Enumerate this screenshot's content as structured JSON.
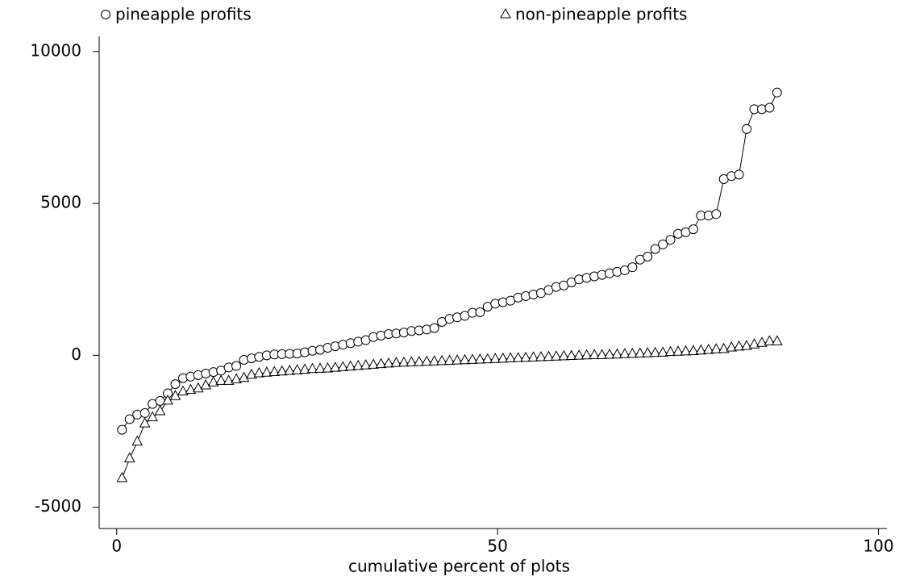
{
  "chart_data": {
    "type": "line",
    "x_label": "cumulative percent of plots",
    "x": [
      0.7,
      1.7,
      2.7,
      3.7,
      4.7,
      5.7,
      6.7,
      7.7,
      8.7,
      9.7,
      10.7,
      11.7,
      12.7,
      13.7,
      14.7,
      15.7,
      16.7,
      17.7,
      18.7,
      19.7,
      20.7,
      21.7,
      22.7,
      23.7,
      24.7,
      25.7,
      26.7,
      27.7,
      28.7,
      29.7,
      30.7,
      31.7,
      32.7,
      33.7,
      34.7,
      35.7,
      36.7,
      37.7,
      38.7,
      39.7,
      40.7,
      41.7,
      42.7,
      43.7,
      44.7,
      45.7,
      46.7,
      47.7,
      48.7,
      49.7,
      50.7,
      51.7,
      52.7,
      53.7,
      54.7,
      55.7,
      56.7,
      57.7,
      58.7,
      59.7,
      60.7,
      61.7,
      62.7,
      63.7,
      64.7,
      65.7,
      66.7,
      67.7,
      68.7,
      69.7,
      70.7,
      71.7,
      72.7,
      73.7,
      74.7,
      75.7,
      76.7,
      77.7,
      78.7,
      79.7,
      80.7,
      81.7,
      82.7,
      83.7,
      84.7,
      85.7,
      86.7
    ],
    "series": [
      {
        "name": "pineapple profits",
        "marker": "circle",
        "color": "#000000",
        "values": [
          -2450,
          -2100,
          -1950,
          -1900,
          -1600,
          -1500,
          -1250,
          -950,
          -750,
          -700,
          -650,
          -600,
          -550,
          -500,
          -400,
          -350,
          -150,
          -100,
          -50,
          0,
          30,
          40,
          50,
          60,
          100,
          150,
          180,
          250,
          300,
          350,
          400,
          450,
          500,
          600,
          650,
          700,
          720,
          750,
          800,
          820,
          850,
          900,
          1100,
          1200,
          1250,
          1300,
          1400,
          1420,
          1600,
          1700,
          1750,
          1800,
          1900,
          1950,
          2000,
          2050,
          2150,
          2250,
          2300,
          2400,
          2500,
          2550,
          2600,
          2650,
          2700,
          2750,
          2800,
          2900,
          3150,
          3250,
          3500,
          3650,
          3800,
          4000,
          4050,
          4150,
          4600,
          4600,
          4650,
          5800,
          5900,
          5950,
          7450,
          8100,
          8100,
          8150,
          8650
        ]
      },
      {
        "name": "non-pineapple profits",
        "marker": "triangle",
        "color": "#000000",
        "values": [
          -4050,
          -3400,
          -2850,
          -2250,
          -2050,
          -1850,
          -1500,
          -1350,
          -1200,
          -1150,
          -1100,
          -1000,
          -900,
          -850,
          -850,
          -800,
          -750,
          -650,
          -600,
          -580,
          -560,
          -540,
          -520,
          -500,
          -480,
          -460,
          -450,
          -440,
          -420,
          -400,
          -380,
          -360,
          -340,
          -320,
          -300,
          -280,
          -260,
          -250,
          -240,
          -230,
          -220,
          -210,
          -200,
          -190,
          -180,
          -170,
          -160,
          -150,
          -140,
          -130,
          -120,
          -110,
          -100,
          -90,
          -80,
          -70,
          -60,
          -50,
          -40,
          -30,
          -20,
          -10,
          0,
          0,
          10,
          20,
          30,
          40,
          50,
          60,
          70,
          80,
          100,
          110,
          120,
          130,
          150,
          170,
          190,
          200,
          250,
          280,
          300,
          350,
          400,
          450,
          450
        ]
      }
    ],
    "xlim": [
      -2.3,
      102.7
    ],
    "ylim": [
      -5700,
      10500
    ],
    "xticks": [
      0,
      50,
      100
    ],
    "yticks": [
      -5000,
      0,
      5000,
      10000
    ]
  }
}
